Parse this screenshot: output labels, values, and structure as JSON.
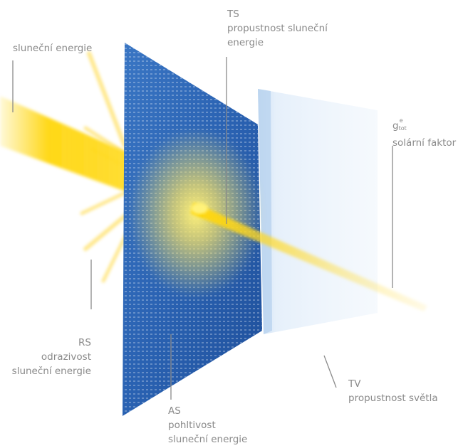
{
  "labels": {
    "solar_energy": "sluneční energie",
    "ts": {
      "code": "TS",
      "line1": "propustnost sluneční",
      "line2": "energie"
    },
    "gtot": {
      "base": "g",
      "sub": "tot",
      "sup": "e",
      "text": "solární faktor"
    },
    "rs": {
      "code": "RS",
      "line1": "odrazivost",
      "line2": "sluneční energie"
    },
    "as": {
      "code": "AS",
      "line1": "pohltivost",
      "line2": "sluneční energie"
    },
    "tv": {
      "code": "TV",
      "line1": "propustnost světla"
    }
  },
  "colors": {
    "panel_blue": "#2a62b2",
    "glass": "#dbe9f8",
    "beam": "#ffd400",
    "leader": "#8a8a8a"
  }
}
